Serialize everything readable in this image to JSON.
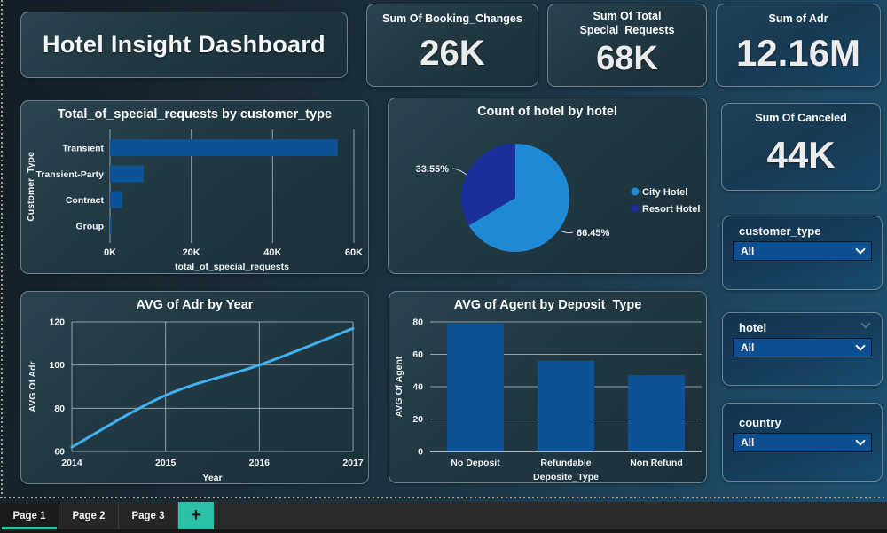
{
  "title_card": {
    "label": "Hotel Insight Dashboard"
  },
  "kpis": [
    {
      "label": "Sum Of Booking_Changes",
      "value": "26K"
    },
    {
      "label": "Sum Of Total\nSpecial_Requests",
      "value": "68K"
    },
    {
      "label": "Sum of Adr",
      "value": "12.16M"
    },
    {
      "label": "Sum Of Canceled",
      "value": "44K"
    }
  ],
  "slicers": [
    {
      "label": "customer_type",
      "value": "All"
    },
    {
      "label": "hotel",
      "value": "All"
    },
    {
      "label": "country",
      "value": "All"
    }
  ],
  "tabs": {
    "items": [
      "Page 1",
      "Page 2",
      "Page 3"
    ],
    "active_index": 0,
    "add_button": "+"
  },
  "colors": {
    "bar_blue": "#0e5296",
    "line_blue": "#3fb1f0",
    "pie_city": "#2089d5",
    "pie_resort": "#1b2f9c",
    "accent_teal": "#2cc0a6",
    "slicer_fill": "#0d4f93",
    "grid": "rgba(222,230,236,0.60)"
  },
  "chart_data": [
    {
      "type": "bar",
      "orientation": "horizontal",
      "title": "Total_of_special_requests by customer_type",
      "categories": [
        "Transient",
        "Transient-Party",
        "Contract",
        "Group"
      ],
      "values": [
        56000,
        8300,
        3000,
        400
      ],
      "xlabel": "total_of_special_requests",
      "ylabel": "Customer_Type",
      "xlim": [
        0,
        60000
      ],
      "grid": true,
      "xticks": [
        {
          "value": 0,
          "label": "0K"
        },
        {
          "value": 20000,
          "label": "20K"
        },
        {
          "value": 40000,
          "label": "40K"
        },
        {
          "value": 60000,
          "label": "60K"
        }
      ]
    },
    {
      "type": "pie",
      "title": "Count of hotel by hotel",
      "slices": [
        {
          "name": "City Hotel",
          "percent": 66.45,
          "label": "66.45%"
        },
        {
          "name": "Resort Hotel",
          "percent": 33.55,
          "label": "33.55%"
        }
      ],
      "legend_position": "right"
    },
    {
      "type": "line",
      "title": "AVG of Adr by Year",
      "x": [
        2014,
        2015,
        2016,
        2017
      ],
      "values": [
        62,
        86,
        100,
        117
      ],
      "xlabel": "Year",
      "ylabel": "AVG Of Adr",
      "ylim": [
        60,
        120
      ],
      "yticks": [
        60,
        80,
        100,
        120
      ],
      "grid": true
    },
    {
      "type": "bar",
      "orientation": "vertical",
      "title": "AVG of Agent by Deposit_Type",
      "categories": [
        "No Deposit",
        "Refundable",
        "Non Refund"
      ],
      "values": [
        79,
        56,
        47
      ],
      "xlabel": "Deposite_Type",
      "ylabel": "AVG Of Agent",
      "ylim": [
        0,
        80
      ],
      "yticks": [
        0,
        20,
        40,
        60,
        80
      ],
      "grid": true
    }
  ]
}
